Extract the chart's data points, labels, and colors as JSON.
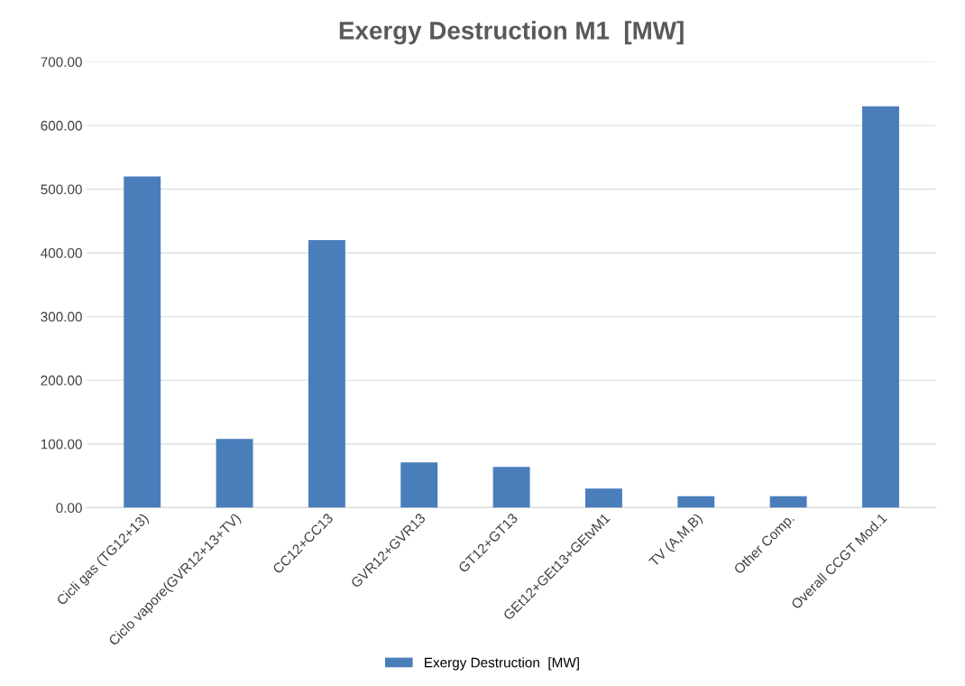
{
  "chart_data": {
    "type": "bar",
    "title": "Exergy Destruction M1  [MW]",
    "categories": [
      "Cicli gas (TG12+13)",
      "Ciclo vapore(GVR12+13+TV)",
      "CC12+CC13",
      "GVR12+GVR13",
      "GT12+GT13",
      "GEt12+GEt13+GEtvM1",
      "TV (A,M,B)",
      "Other Comp.",
      "Overall CCGT Mod.1"
    ],
    "series": [
      {
        "name": "Exergy Destruction  [MW]",
        "color": "#4a7ebb",
        "values": [
          520,
          108,
          420,
          71,
          64,
          30,
          18,
          18,
          630
        ]
      }
    ],
    "ylim": [
      0,
      700
    ],
    "yticks": [
      {
        "value": 0,
        "label": "0.00"
      },
      {
        "value": 100,
        "label": "100.00"
      },
      {
        "value": 200,
        "label": "200.00"
      },
      {
        "value": 300,
        "label": "300.00"
      },
      {
        "value": 400,
        "label": "400.00"
      },
      {
        "value": 500,
        "label": "500.00"
      },
      {
        "value": 600,
        "label": "600.00"
      },
      {
        "value": 700,
        "label": "700.00"
      }
    ],
    "grid": "y",
    "legend": "bottom"
  }
}
